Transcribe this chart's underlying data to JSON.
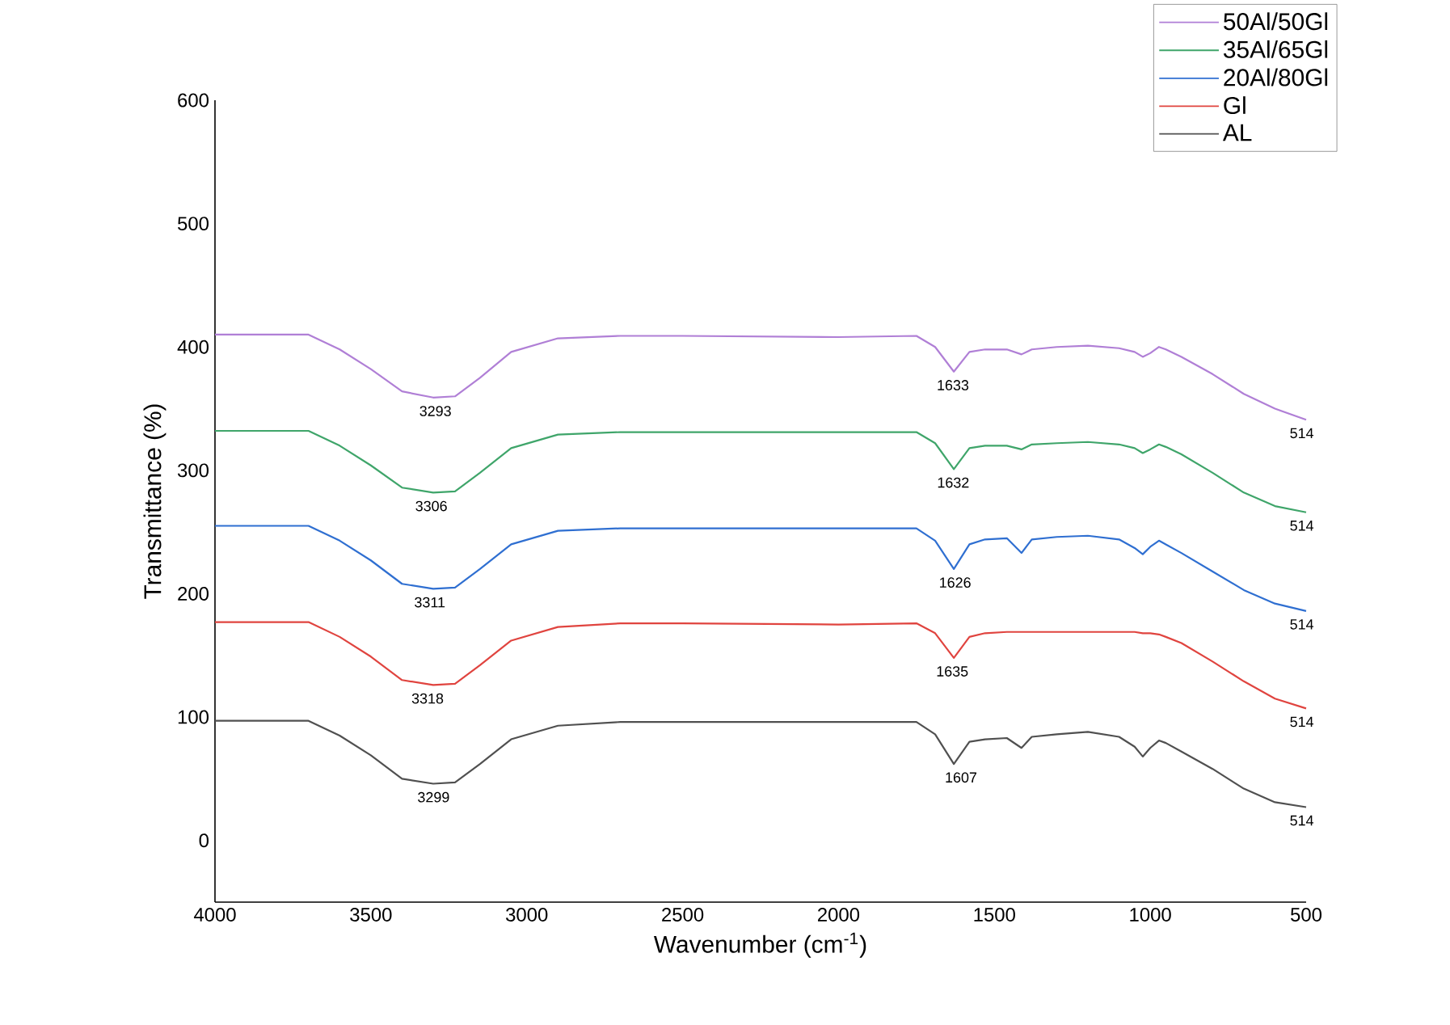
{
  "chart_data": {
    "type": "line",
    "xlabel": "Wavenumber (cm$^{-1}$)",
    "ylabel": "Transmittance (%)",
    "xlim": [
      4000,
      500
    ],
    "xticks": [
      4000,
      3500,
      3000,
      2500,
      2000,
      1500,
      1000,
      500
    ],
    "ylim": [
      -50,
      600
    ],
    "yticks": [
      0,
      100,
      200,
      300,
      400,
      500,
      600
    ],
    "grid": false,
    "legend": "top right",
    "x": [
      4000,
      3700,
      3600,
      3500,
      3400,
      3300,
      3230,
      3150,
      3050,
      2900,
      2700,
      2500,
      2000,
      1750,
      1690,
      1630,
      1580,
      1530,
      1460,
      1413,
      1380,
      1300,
      1200,
      1100,
      1050,
      1024,
      1000,
      972,
      950,
      900,
      800,
      700,
      600,
      500
    ],
    "series": [
      {
        "name": "50Al/50Gl",
        "color": "#b07fd6",
        "values": [
          410,
          410,
          398,
          382,
          364,
          359,
          360,
          375,
          396,
          407,
          409,
          409,
          408,
          409,
          400,
          380,
          396,
          398,
          398,
          394,
          398,
          400,
          401,
          399,
          396,
          392,
          395,
          400,
          398,
          392,
          378,
          362,
          350,
          341
        ]
      },
      {
        "name": "35Al/65Gl",
        "color": "#3fa56a",
        "values": [
          332,
          332,
          320,
          304,
          286,
          282,
          283,
          298,
          318,
          329,
          331,
          331,
          331,
          331,
          322,
          301,
          318,
          320,
          320,
          317,
          321,
          322,
          323,
          321,
          318,
          314,
          317,
          321,
          319,
          313,
          298,
          282,
          271,
          266
        ]
      },
      {
        "name": "20Al/80Gl",
        "color": "#2f6fd1",
        "values": [
          255,
          255,
          243,
          227,
          208,
          204,
          205,
          220,
          240,
          251,
          253,
          253,
          253,
          253,
          243,
          220,
          240,
          244,
          245,
          233,
          244,
          246,
          247,
          244,
          237,
          232,
          238,
          243,
          240,
          233,
          218,
          203,
          192,
          186
        ]
      },
      {
        "name": "Gl",
        "color": "#e0443f",
        "values": [
          177,
          177,
          165,
          149,
          130,
          126,
          127,
          142,
          162,
          173,
          176,
          176,
          175,
          176,
          168,
          148,
          165,
          168,
          169,
          169,
          169,
          169,
          169,
          169,
          169,
          168,
          168,
          167,
          165,
          160,
          145,
          129,
          115,
          107
        ]
      },
      {
        "name": "AL",
        "color": "#505050",
        "values": [
          97,
          97,
          85,
          69,
          50,
          46,
          47,
          62,
          82,
          93,
          96,
          96,
          96,
          96,
          86,
          62,
          80,
          82,
          83,
          75,
          84,
          86,
          88,
          84,
          76,
          68,
          75,
          81,
          79,
          72,
          58,
          42,
          31,
          27
        ]
      }
    ],
    "annotations": [
      {
        "text": "3293",
        "x": 3293,
        "y": 359
      },
      {
        "text": "1633",
        "x": 1633,
        "y": 380
      },
      {
        "text": "514",
        "x": 514,
        "y": 341
      },
      {
        "text": "3306",
        "x": 3306,
        "y": 282
      },
      {
        "text": "1632",
        "x": 1632,
        "y": 301
      },
      {
        "text": "514",
        "x": 514,
        "y": 266
      },
      {
        "text": "3311",
        "x": 3311,
        "y": 204
      },
      {
        "text": "1626",
        "x": 1626,
        "y": 220
      },
      {
        "text": "514",
        "x": 514,
        "y": 186
      },
      {
        "text": "3318",
        "x": 3318,
        "y": 126
      },
      {
        "text": "1635",
        "x": 1635,
        "y": 148
      },
      {
        "text": "514",
        "x": 514,
        "y": 107
      },
      {
        "text": "3299",
        "x": 3299,
        "y": 46
      },
      {
        "text": "1607",
        "x": 1607,
        "y": 62
      },
      {
        "text": "514",
        "x": 514,
        "y": 27
      }
    ]
  }
}
